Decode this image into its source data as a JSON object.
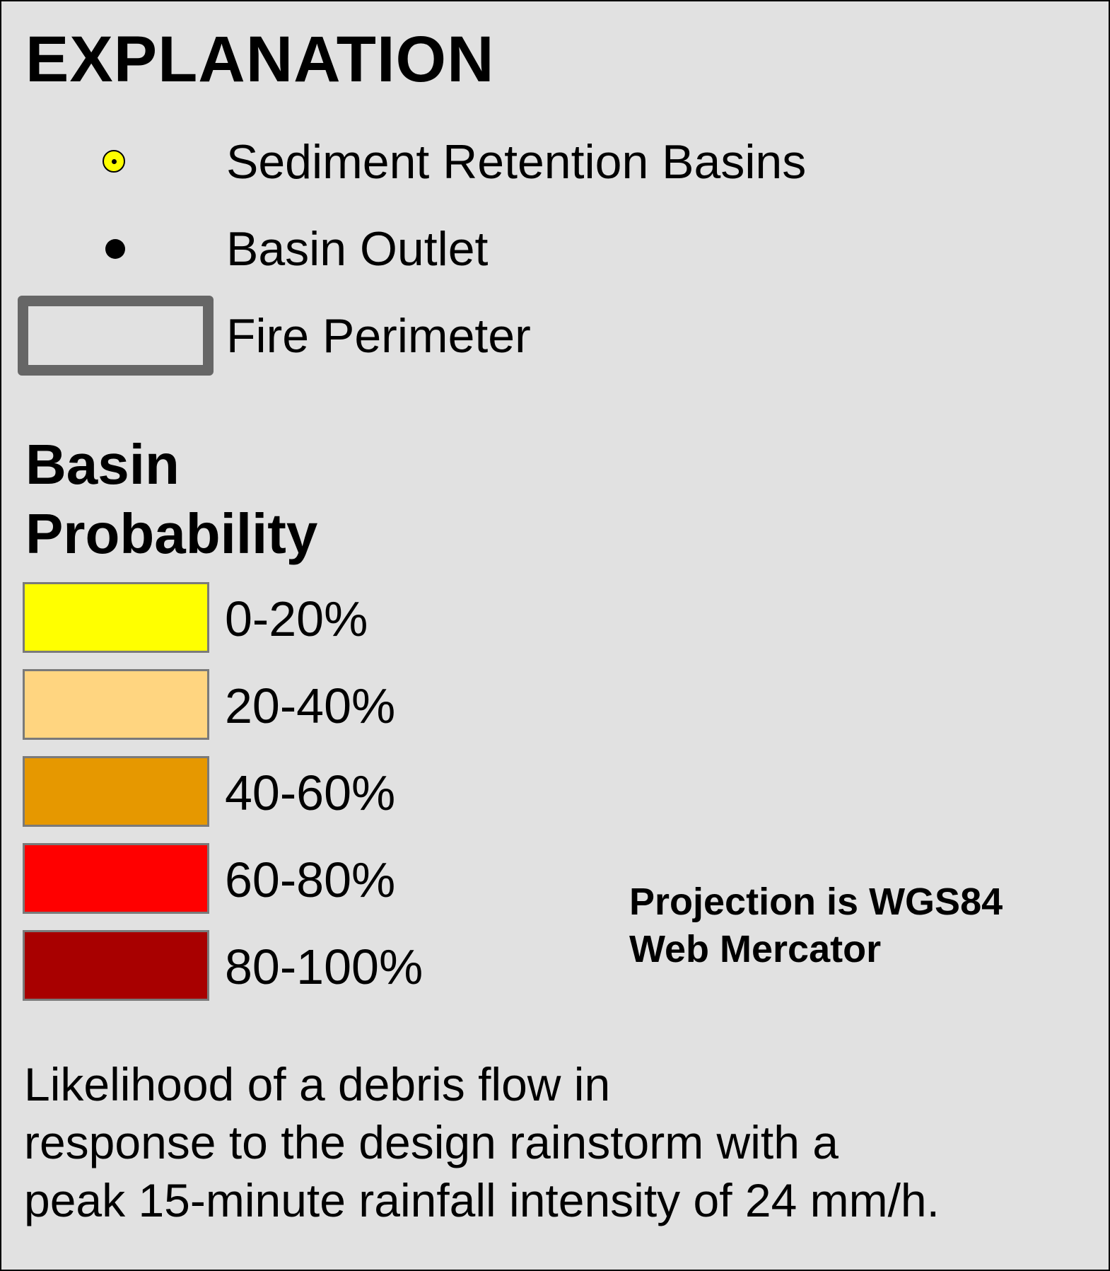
{
  "legend": {
    "title": "EXPLANATION",
    "symbols": [
      {
        "label": "Sediment Retention Basins",
        "icon": "yellow-circle-dot-icon",
        "fill": "#ffff00"
      },
      {
        "label": "Basin Outlet",
        "icon": "black-dot-icon",
        "fill": "#000000"
      },
      {
        "label": "Fire Perimeter",
        "icon": "gray-outline-rectangle-icon",
        "stroke": "#666666"
      }
    ],
    "probability": {
      "heading": "Basin\nProbability",
      "classes": [
        {
          "label": "0-20%",
          "color": "#ffff00"
        },
        {
          "label": "20-40%",
          "color": "#ffd580"
        },
        {
          "label": "40-60%",
          "color": "#e69800"
        },
        {
          "label": "60-80%",
          "color": "#ff0000"
        },
        {
          "label": "80-100%",
          "color": "#a80000"
        }
      ]
    },
    "projection": "Projection is WGS84\nWeb Mercator",
    "note": "Likelihood of a debris flow in\nresponse to the design rainstorm with a\npeak 15-minute rainfall intensity of 24 mm/h."
  }
}
